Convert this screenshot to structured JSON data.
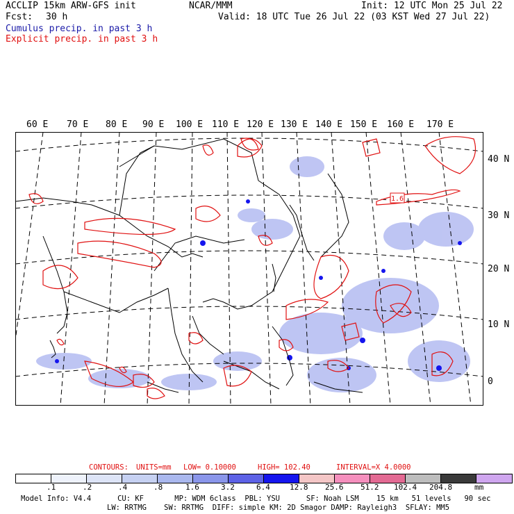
{
  "header": {
    "title_left": "ACCLIP 15km ARW-GFS init",
    "fcst_label": "Fcst:",
    "fcst_value": "30 h",
    "center": "NCAR/MMM",
    "init": "Init: 12 UTC Mon 25 Jul 22",
    "valid": "Valid: 18 UTC Tue 26 Jul 22 (03 KST Wed 27 Jul 22)",
    "cumulus": "Cumulus precip. in past 3 h",
    "explicit": "Explicit precip. in past 3 h"
  },
  "map": {
    "lon_labels": [
      "60 E",
      "70 E",
      "80 E",
      "90 E",
      "100 E",
      "110 E",
      "120 E",
      "130 E",
      "140 E",
      "150 E",
      "160 E",
      "170 E"
    ],
    "lat_labels": [
      "40 N",
      "30 N",
      "20 N",
      "10 N",
      "0"
    ],
    "max_label": "1.6"
  },
  "contours": {
    "label": "CONTOURS:",
    "units": "UNITS=mm",
    "low": "LOW= 0.10000",
    "high": "HIGH= 102.40",
    "interval": "INTERVAL=X 4.0000"
  },
  "colorbar": {
    "colors": [
      "#ffffff",
      "#eef2fb",
      "#dde4f7",
      "#c6d1f2",
      "#aab8ee",
      "#8a96ea",
      "#5d62e6",
      "#1515ee",
      "#f4c6c6",
      "#f58fbd",
      "#e36a93",
      "#bdbdbd",
      "#3a3a3a",
      "#cfa6ef"
    ],
    "ticks": [
      ".1",
      ".2",
      ".4",
      ".8",
      "1.6",
      "3.2",
      "6.4",
      "12.8",
      "25.6",
      "51.2",
      "102.4",
      "204.8"
    ],
    "unit": "mm"
  },
  "footer": {
    "line1": "Model Info: V4.4      CU: KF       MP: WDM 6class  PBL: YSU      SF: Noah LSM    15 km   51 levels   90 sec",
    "line2": "LW: RRTMG    SW: RRTMG  DIFF: simple KM: 2D Smagor DAMP: Rayleigh3  SFLAY: MM5"
  }
}
